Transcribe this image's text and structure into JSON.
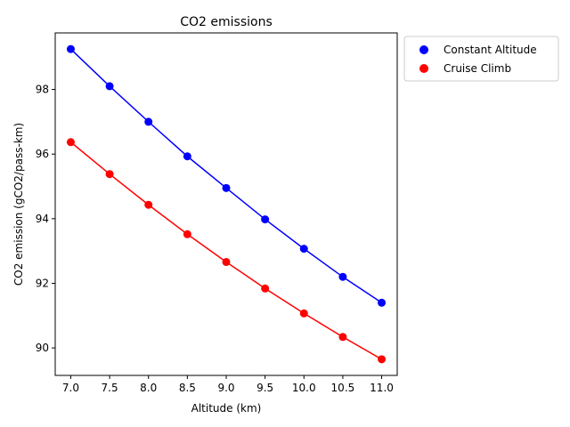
{
  "chart_data": {
    "type": "line",
    "title": "CO2 emissions",
    "xlabel": "Altitude (km)",
    "ylabel": "CO2 emission (gCO2/pass-km)",
    "x": [
      7.0,
      7.5,
      8.0,
      8.5,
      9.0,
      9.5,
      10.0,
      10.5,
      11.0
    ],
    "xticks": [
      "7.0",
      "7.5",
      "8.0",
      "8.5",
      "9.0",
      "9.5",
      "10.0",
      "10.5",
      "11.0"
    ],
    "yticks": [
      "90",
      "92",
      "94",
      "96",
      "98"
    ],
    "xlim": [
      6.8,
      11.2
    ],
    "ylim": [
      89.15,
      99.75
    ],
    "grid": false,
    "legend_position": "outside upper-right",
    "series": [
      {
        "name": "Constant Altitude",
        "color": "#0000ff",
        "values": [
          99.25,
          98.1,
          97.0,
          95.93,
          94.95,
          93.98,
          93.07,
          92.2,
          91.4
        ]
      },
      {
        "name": "Cruise Climb",
        "color": "#ff0000",
        "values": [
          96.37,
          95.38,
          94.43,
          93.52,
          92.66,
          91.84,
          91.07,
          90.34,
          89.65
        ]
      }
    ]
  }
}
